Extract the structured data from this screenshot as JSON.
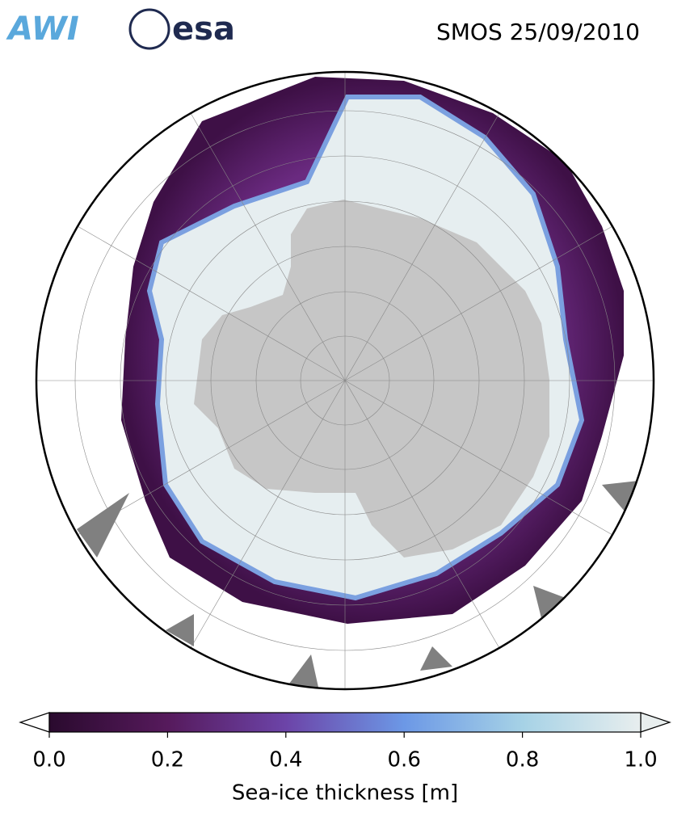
{
  "header": {
    "title": "SMOS 25/09/2010",
    "logos": [
      "AWI",
      "esa"
    ]
  },
  "colorbar": {
    "label": "Sea-ice thickness [m]",
    "lim": [
      0,
      1
    ],
    "ticks": [
      {
        "value": 0,
        "label": "0.0"
      },
      {
        "value": 0.2,
        "label": "0.2"
      },
      {
        "value": 0.4,
        "label": "0.4"
      },
      {
        "value": 0.6,
        "label": "0.6"
      },
      {
        "value": 0.8,
        "label": "0.8"
      },
      {
        "value": 1,
        "label": "1.0"
      }
    ]
  }
}
